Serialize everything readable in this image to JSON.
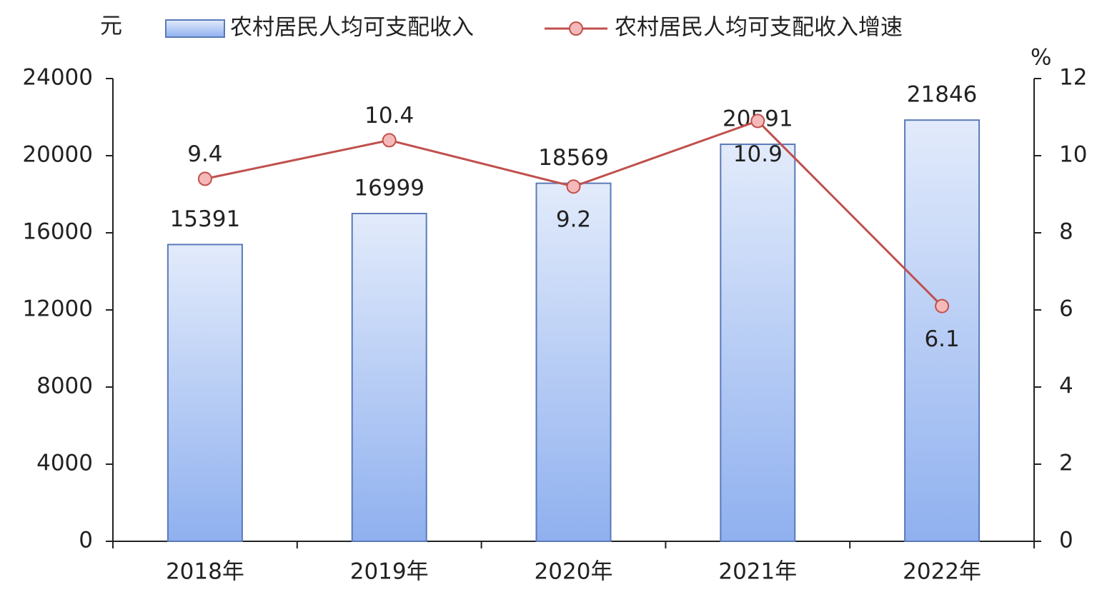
{
  "chart_data": {
    "type": "bar",
    "y_label": "元",
    "y2_label": "%",
    "categories": [
      "2018年",
      "2019年",
      "2020年",
      "2021年",
      "2022年"
    ],
    "series": [
      {
        "name": "农村居民人均可支配收入",
        "color": "#a9c2f2",
        "values": [
          15391,
          16999,
          18569,
          20591,
          21846
        ]
      },
      {
        "name": "农村居民人均可支配收入增速",
        "color": "#c0504d",
        "type": "line",
        "axis": "y2",
        "values": [
          9.4,
          10.4,
          9.2,
          10.9,
          6.1
        ]
      }
    ],
    "ylim": [
      0,
      24000
    ],
    "yticks": [
      0,
      4000,
      8000,
      12000,
      16000,
      20000,
      24000
    ],
    "y2lim": [
      0,
      12
    ],
    "y2ticks": [
      0,
      2,
      4,
      6,
      8,
      10,
      12
    ]
  }
}
